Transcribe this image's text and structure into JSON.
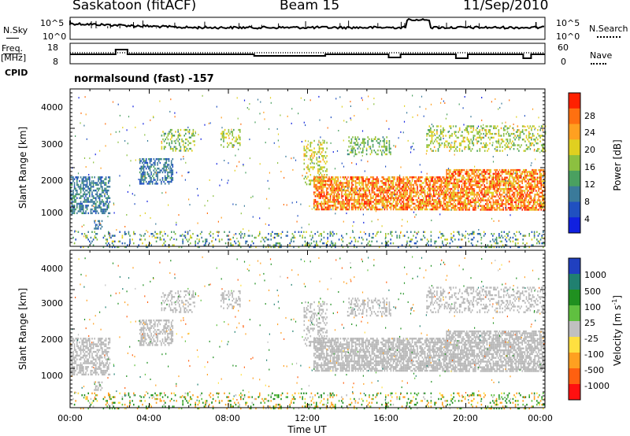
{
  "header": {
    "station": "Saskatoon (fitACF)",
    "beam": "Beam 15",
    "date": "11/Sep/2010"
  },
  "left_labels": {
    "nsky": "N.Sky",
    "freq": "Freq.",
    "mhz": "[MHz]",
    "cpid": "CPID"
  },
  "right_labels": {
    "nsearch": "N.Search",
    "nave": "Nave"
  },
  "cpid_text": "normalsound (fast) -157",
  "colors": {
    "power_scale": [
      "#1020e0",
      "#2050c0",
      "#3a7a9a",
      "#4aa060",
      "#8cc040",
      "#e0d020",
      "#ffa020",
      "#ff7010",
      "#ff2000"
    ],
    "velocity_scale": [
      "#ff1010",
      "#ff6010",
      "#ffa020",
      "#ffe040",
      "#c0c0c0",
      "#60c040",
      "#209020",
      "#208070",
      "#2040c0"
    ],
    "ground_scatter": "#b8b8b8"
  },
  "chart_data": [
    {
      "type": "line",
      "panel": "noise",
      "ylabel_left": "N.Sky",
      "ylabel_right": "N.Search",
      "yticks_left": [
        "10^5",
        "10^0"
      ],
      "yticks_right": [
        "10^5",
        "10^0"
      ]
    },
    {
      "type": "line",
      "panel": "frequency",
      "ylabel_left": "Freq. [MHz]",
      "ylabel_right": "Nave",
      "yticks_left": [
        "18",
        "8"
      ],
      "yticks_right": [
        "60",
        "0"
      ],
      "ylim_left": [
        8,
        18
      ],
      "ylim_right": [
        0,
        60
      ]
    },
    {
      "type": "heatmap",
      "panel": "power",
      "xlabel": "",
      "ylabel": "Slant Range [km]",
      "yticks": [
        "4000",
        "3000",
        "2000",
        "1000"
      ],
      "ylim": [
        180,
        4500
      ],
      "colorbar_label": "Power [dB]",
      "colorbar_ticks": [
        "28",
        "24",
        "20",
        "16",
        "12",
        "8",
        "4"
      ],
      "colorbar_range": [
        0,
        32
      ]
    },
    {
      "type": "heatmap",
      "panel": "velocity",
      "xlabel": "Time UT",
      "ylabel": "Slant Range [km]",
      "yticks": [
        "4000",
        "3000",
        "2000",
        "1000"
      ],
      "ylim": [
        180,
        4500
      ],
      "xticks": [
        "00:00",
        "04:00",
        "08:00",
        "12:00",
        "16:00",
        "20:00",
        "00:00"
      ],
      "colorbar_label": "Velocity [m s",
      "colorbar_label_sup": "-1",
      "colorbar_label_end": "]",
      "colorbar_ticks": [
        "1000",
        "500",
        "100",
        "25",
        "-25",
        "-100",
        "-500",
        "-1000"
      ]
    }
  ]
}
